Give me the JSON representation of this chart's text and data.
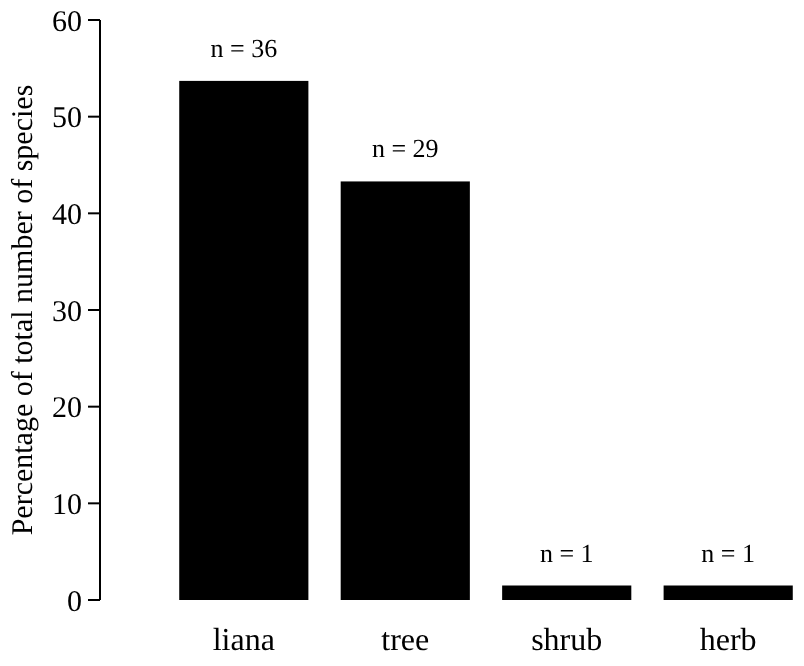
{
  "chart_data": {
    "type": "bar",
    "ylabel": "Percentage of total number of species",
    "categories": [
      "liana",
      "tree",
      "shrub",
      "herb"
    ],
    "values": [
      53.7,
      43.3,
      1.5,
      1.5
    ],
    "color": "#000000",
    "ylim": [
      0,
      60
    ],
    "yticks": [
      0,
      10,
      20,
      30,
      40,
      50,
      60
    ],
    "grid": false,
    "annotations": [
      {
        "text": "n = 36",
        "x": "liana",
        "y": 53.7
      },
      {
        "text": "n = 29",
        "x": "tree",
        "y": 43.3
      },
      {
        "text": "n = 1",
        "x": "shrub",
        "y": 1.5
      },
      {
        "text": "n = 1",
        "x": "herb",
        "y": 1.5
      }
    ]
  }
}
